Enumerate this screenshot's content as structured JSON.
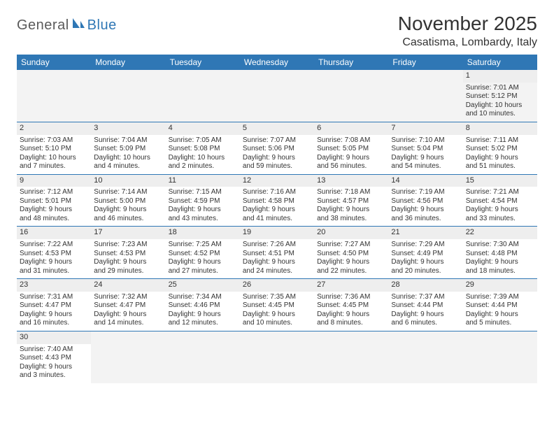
{
  "logo": {
    "part1": "General",
    "part2": "Blue"
  },
  "title": "November 2025",
  "location": "Casatisma, Lombardy, Italy",
  "colors": {
    "header_bg": "#2f77b5",
    "header_fg": "#ffffff",
    "daynum_bg": "#eeeeee",
    "border": "#2f77b5",
    "logo_gray": "#5a5a5a",
    "logo_blue": "#2f77b5"
  },
  "day_headers": [
    "Sunday",
    "Monday",
    "Tuesday",
    "Wednesday",
    "Thursday",
    "Friday",
    "Saturday"
  ],
  "weeks": [
    [
      null,
      null,
      null,
      null,
      null,
      null,
      {
        "n": "1",
        "sr": "Sunrise: 7:01 AM",
        "ss": "Sunset: 5:12 PM",
        "dl1": "Daylight: 10 hours",
        "dl2": "and 10 minutes."
      }
    ],
    [
      {
        "n": "2",
        "sr": "Sunrise: 7:03 AM",
        "ss": "Sunset: 5:10 PM",
        "dl1": "Daylight: 10 hours",
        "dl2": "and 7 minutes."
      },
      {
        "n": "3",
        "sr": "Sunrise: 7:04 AM",
        "ss": "Sunset: 5:09 PM",
        "dl1": "Daylight: 10 hours",
        "dl2": "and 4 minutes."
      },
      {
        "n": "4",
        "sr": "Sunrise: 7:05 AM",
        "ss": "Sunset: 5:08 PM",
        "dl1": "Daylight: 10 hours",
        "dl2": "and 2 minutes."
      },
      {
        "n": "5",
        "sr": "Sunrise: 7:07 AM",
        "ss": "Sunset: 5:06 PM",
        "dl1": "Daylight: 9 hours",
        "dl2": "and 59 minutes."
      },
      {
        "n": "6",
        "sr": "Sunrise: 7:08 AM",
        "ss": "Sunset: 5:05 PM",
        "dl1": "Daylight: 9 hours",
        "dl2": "and 56 minutes."
      },
      {
        "n": "7",
        "sr": "Sunrise: 7:10 AM",
        "ss": "Sunset: 5:04 PM",
        "dl1": "Daylight: 9 hours",
        "dl2": "and 54 minutes."
      },
      {
        "n": "8",
        "sr": "Sunrise: 7:11 AM",
        "ss": "Sunset: 5:02 PM",
        "dl1": "Daylight: 9 hours",
        "dl2": "and 51 minutes."
      }
    ],
    [
      {
        "n": "9",
        "sr": "Sunrise: 7:12 AM",
        "ss": "Sunset: 5:01 PM",
        "dl1": "Daylight: 9 hours",
        "dl2": "and 48 minutes."
      },
      {
        "n": "10",
        "sr": "Sunrise: 7:14 AM",
        "ss": "Sunset: 5:00 PM",
        "dl1": "Daylight: 9 hours",
        "dl2": "and 46 minutes."
      },
      {
        "n": "11",
        "sr": "Sunrise: 7:15 AM",
        "ss": "Sunset: 4:59 PM",
        "dl1": "Daylight: 9 hours",
        "dl2": "and 43 minutes."
      },
      {
        "n": "12",
        "sr": "Sunrise: 7:16 AM",
        "ss": "Sunset: 4:58 PM",
        "dl1": "Daylight: 9 hours",
        "dl2": "and 41 minutes."
      },
      {
        "n": "13",
        "sr": "Sunrise: 7:18 AM",
        "ss": "Sunset: 4:57 PM",
        "dl1": "Daylight: 9 hours",
        "dl2": "and 38 minutes."
      },
      {
        "n": "14",
        "sr": "Sunrise: 7:19 AM",
        "ss": "Sunset: 4:56 PM",
        "dl1": "Daylight: 9 hours",
        "dl2": "and 36 minutes."
      },
      {
        "n": "15",
        "sr": "Sunrise: 7:21 AM",
        "ss": "Sunset: 4:54 PM",
        "dl1": "Daylight: 9 hours",
        "dl2": "and 33 minutes."
      }
    ],
    [
      {
        "n": "16",
        "sr": "Sunrise: 7:22 AM",
        "ss": "Sunset: 4:53 PM",
        "dl1": "Daylight: 9 hours",
        "dl2": "and 31 minutes."
      },
      {
        "n": "17",
        "sr": "Sunrise: 7:23 AM",
        "ss": "Sunset: 4:53 PM",
        "dl1": "Daylight: 9 hours",
        "dl2": "and 29 minutes."
      },
      {
        "n": "18",
        "sr": "Sunrise: 7:25 AM",
        "ss": "Sunset: 4:52 PM",
        "dl1": "Daylight: 9 hours",
        "dl2": "and 27 minutes."
      },
      {
        "n": "19",
        "sr": "Sunrise: 7:26 AM",
        "ss": "Sunset: 4:51 PM",
        "dl1": "Daylight: 9 hours",
        "dl2": "and 24 minutes."
      },
      {
        "n": "20",
        "sr": "Sunrise: 7:27 AM",
        "ss": "Sunset: 4:50 PM",
        "dl1": "Daylight: 9 hours",
        "dl2": "and 22 minutes."
      },
      {
        "n": "21",
        "sr": "Sunrise: 7:29 AM",
        "ss": "Sunset: 4:49 PM",
        "dl1": "Daylight: 9 hours",
        "dl2": "and 20 minutes."
      },
      {
        "n": "22",
        "sr": "Sunrise: 7:30 AM",
        "ss": "Sunset: 4:48 PM",
        "dl1": "Daylight: 9 hours",
        "dl2": "and 18 minutes."
      }
    ],
    [
      {
        "n": "23",
        "sr": "Sunrise: 7:31 AM",
        "ss": "Sunset: 4:47 PM",
        "dl1": "Daylight: 9 hours",
        "dl2": "and 16 minutes."
      },
      {
        "n": "24",
        "sr": "Sunrise: 7:32 AM",
        "ss": "Sunset: 4:47 PM",
        "dl1": "Daylight: 9 hours",
        "dl2": "and 14 minutes."
      },
      {
        "n": "25",
        "sr": "Sunrise: 7:34 AM",
        "ss": "Sunset: 4:46 PM",
        "dl1": "Daylight: 9 hours",
        "dl2": "and 12 minutes."
      },
      {
        "n": "26",
        "sr": "Sunrise: 7:35 AM",
        "ss": "Sunset: 4:45 PM",
        "dl1": "Daylight: 9 hours",
        "dl2": "and 10 minutes."
      },
      {
        "n": "27",
        "sr": "Sunrise: 7:36 AM",
        "ss": "Sunset: 4:45 PM",
        "dl1": "Daylight: 9 hours",
        "dl2": "and 8 minutes."
      },
      {
        "n": "28",
        "sr": "Sunrise: 7:37 AM",
        "ss": "Sunset: 4:44 PM",
        "dl1": "Daylight: 9 hours",
        "dl2": "and 6 minutes."
      },
      {
        "n": "29",
        "sr": "Sunrise: 7:39 AM",
        "ss": "Sunset: 4:44 PM",
        "dl1": "Daylight: 9 hours",
        "dl2": "and 5 minutes."
      }
    ],
    [
      {
        "n": "30",
        "sr": "Sunrise: 7:40 AM",
        "ss": "Sunset: 4:43 PM",
        "dl1": "Daylight: 9 hours",
        "dl2": "and 3 minutes."
      },
      null,
      null,
      null,
      null,
      null,
      null
    ]
  ]
}
